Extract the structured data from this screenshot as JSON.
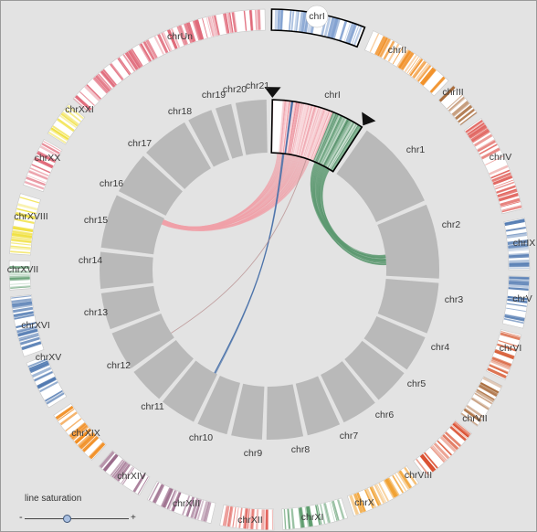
{
  "outer_ring": {
    "chromosomes": [
      {
        "label": "chrI",
        "color": "#7f9fcf",
        "selected": true
      },
      {
        "label": "chrII",
        "color": "#f08a1c"
      },
      {
        "label": "chrIII",
        "color": "#a86a3a"
      },
      {
        "label": "chrIV",
        "color": "#e0605a"
      },
      {
        "label": "chrIX",
        "color": "#4f78b0"
      },
      {
        "label": "chrV",
        "color": "#4f78b0"
      },
      {
        "label": "chrVI",
        "color": "#d8603a"
      },
      {
        "label": "chrVII",
        "color": "#a86a3a"
      },
      {
        "label": "chrVIII",
        "color": "#d84a2a"
      },
      {
        "label": "chrX",
        "color": "#f0a030"
      },
      {
        "label": "chrXI",
        "color": "#5a9a6a"
      },
      {
        "label": "chrXII",
        "color": "#e0605a"
      },
      {
        "label": "chrXIII",
        "color": "#9a6a8a"
      },
      {
        "label": "chrXIV",
        "color": "#9a6a8a"
      },
      {
        "label": "chrXIX",
        "color": "#f08a1c"
      },
      {
        "label": "chrXV",
        "color": "#4f78b0"
      },
      {
        "label": "chrXVI",
        "color": "#4f78b0"
      },
      {
        "label": "chrXVII",
        "color": "#5a9a6a"
      },
      {
        "label": "chrXVIII",
        "color": "#f0e040"
      },
      {
        "label": "chrXX",
        "color": "#e06a7a"
      },
      {
        "label": "chrXXI",
        "color": "#f0e040"
      },
      {
        "label": "chrUn",
        "color": "#e06a7a"
      }
    ]
  },
  "inner_ring": {
    "chromosomes": [
      {
        "label": "chrI",
        "selected": true
      },
      {
        "label": "chr1"
      },
      {
        "label": "chr2"
      },
      {
        "label": "chr3"
      },
      {
        "label": "chr4"
      },
      {
        "label": "chr5"
      },
      {
        "label": "chr6"
      },
      {
        "label": "chr7"
      },
      {
        "label": "chr8"
      },
      {
        "label": "chr9"
      },
      {
        "label": "chr10"
      },
      {
        "label": "chr11"
      },
      {
        "label": "chr12"
      },
      {
        "label": "chr13"
      },
      {
        "label": "chr14"
      },
      {
        "label": "chr15"
      },
      {
        "label": "chr16"
      },
      {
        "label": "chr17"
      },
      {
        "label": "chr18"
      },
      {
        "label": "chr19"
      },
      {
        "label": "chr20"
      },
      {
        "label": "chr21"
      }
    ]
  },
  "links": [
    {
      "from": "chrI",
      "to": "chr16",
      "color": "#f0a0a8"
    },
    {
      "from": "chrI",
      "to": "chr3",
      "color": "#5e9a72"
    },
    {
      "from": "chrI",
      "to": "chr10",
      "color": "#4a72aa"
    },
    {
      "from": "chrI",
      "to": "chr13",
      "color": "#b58a8a"
    }
  ],
  "slider": {
    "label": "line saturation",
    "min_label": "-",
    "max_label": "+",
    "value": 0.4
  },
  "colors": {
    "background": "#e3e3e3",
    "inner_block": "#b9b9b9",
    "selection_outline": "#000000"
  }
}
